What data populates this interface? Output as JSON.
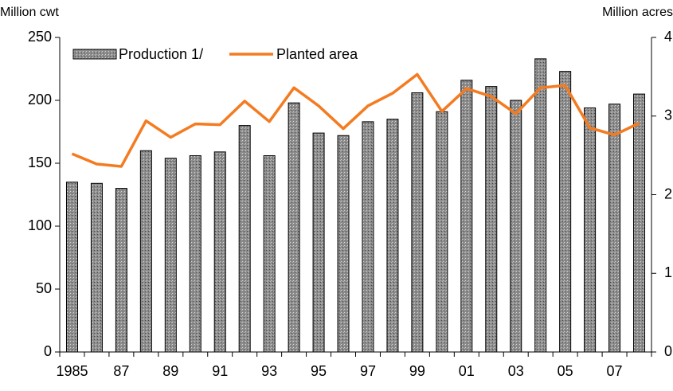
{
  "chart_data": {
    "type": "bar-line",
    "y_label": "Million cwt",
    "y2_label": "Million acres",
    "categories": [
      "1985",
      null,
      "87",
      null,
      "89",
      null,
      "91",
      null,
      "93",
      null,
      "95",
      null,
      "97",
      null,
      "99",
      null,
      "01",
      null,
      "03",
      null,
      "05",
      null,
      "07",
      null
    ],
    "series": [
      {
        "name": "Production 1/",
        "type": "bar",
        "color": "#8c8c8c",
        "values": [
          135,
          134,
          130,
          160,
          154,
          156,
          159,
          180,
          156,
          198,
          174,
          172,
          183,
          185,
          206,
          191,
          216,
          211,
          200,
          233,
          223,
          194,
          197,
          205
        ]
      },
      {
        "name": "Planted area",
        "type": "line",
        "axis": "y2",
        "color": "#f47b20",
        "values": [
          2.52,
          2.39,
          2.36,
          2.94,
          2.73,
          2.9,
          2.89,
          3.19,
          2.93,
          3.36,
          3.13,
          2.84,
          3.13,
          3.29,
          3.53,
          3.06,
          3.35,
          3.25,
          3.03,
          3.36,
          3.39,
          2.85,
          2.76,
          2.91
        ]
      }
    ],
    "ylim": [
      0,
      250
    ],
    "yticks": [
      0,
      50,
      100,
      150,
      200,
      250
    ],
    "y2lim": [
      0,
      4
    ],
    "y2ticks": [
      0,
      1,
      2,
      3,
      4
    ]
  }
}
